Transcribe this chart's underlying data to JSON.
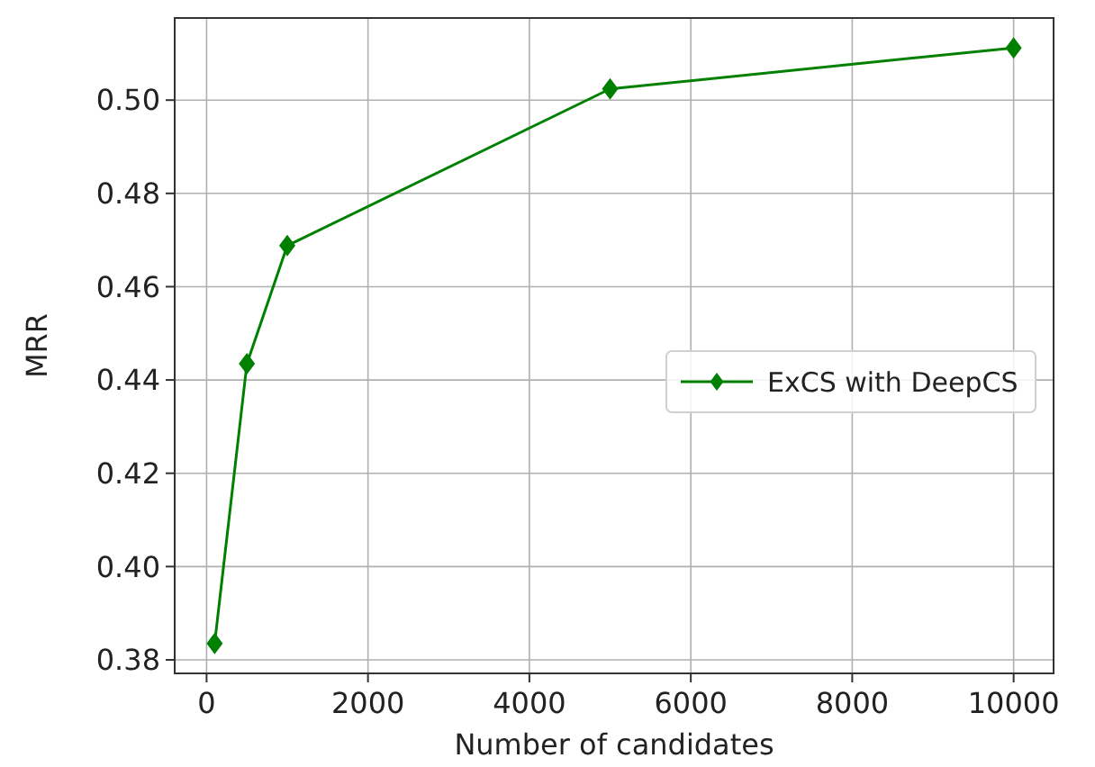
{
  "chart_data": {
    "type": "line",
    "xlabel": "Number of candidates",
    "ylabel": "MRR",
    "x": [
      100,
      500,
      1000,
      5000,
      10000
    ],
    "series": [
      {
        "name": "ExCS with DeepCS",
        "color": "#008000",
        "values": [
          0.3835,
          0.4435,
          0.4688,
          0.5024,
          0.5112
        ]
      }
    ],
    "xlim": [
      -395,
      10495
    ],
    "xticks": [
      0,
      2000,
      4000,
      6000,
      8000,
      10000
    ],
    "ylim": [
      0.3771,
      0.5176
    ],
    "yticks": [
      {
        "value": 0.38,
        "label": "0.38"
      },
      {
        "value": 0.4,
        "label": "0.40"
      },
      {
        "value": 0.42,
        "label": "0.42"
      },
      {
        "value": 0.44,
        "label": "0.44"
      },
      {
        "value": 0.46,
        "label": "0.46"
      },
      {
        "value": 0.48,
        "label": "0.48"
      },
      {
        "value": 0.5,
        "label": "0.50"
      }
    ],
    "grid": true,
    "legend": "right",
    "marker": "diamond",
    "line_style": "solid"
  }
}
